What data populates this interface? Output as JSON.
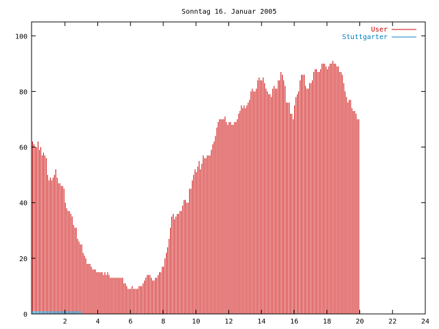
{
  "chart_data": {
    "type": "bar",
    "title": "Sonntag 16. Januar 2005",
    "xlabel": "",
    "ylabel": "",
    "xlim": [
      0,
      24
    ],
    "ylim": [
      0,
      105
    ],
    "x_ticks": [
      "2",
      "4",
      "6",
      "8",
      "10",
      "12",
      "14",
      "16",
      "18",
      "20",
      "22",
      "24"
    ],
    "y_ticks": [
      "0",
      "20",
      "40",
      "60",
      "80",
      "100"
    ],
    "grid": false,
    "legend_position": "top-right",
    "interval_minutes": 5,
    "series": [
      {
        "name": "User",
        "color": "#cc0000",
        "values": [
          62,
          61,
          60,
          60,
          62,
          59,
          60,
          57,
          58,
          57,
          56,
          50,
          48,
          49,
          48,
          49,
          50,
          52,
          49,
          47,
          47,
          46,
          46,
          45,
          40,
          38,
          37,
          37,
          36,
          35,
          32,
          31,
          31,
          27,
          26,
          25,
          25,
          22,
          21,
          20,
          18,
          18,
          18,
          17,
          16,
          16,
          16,
          15,
          15,
          15,
          15,
          15,
          14,
          15,
          14,
          15,
          14,
          13,
          13,
          13,
          13,
          13,
          13,
          13,
          13,
          13,
          13,
          11,
          11,
          10,
          9,
          9,
          9,
          10,
          9,
          9,
          9,
          9,
          10,
          10,
          10,
          11,
          12,
          13,
          14,
          14,
          14,
          13,
          12,
          12,
          13,
          13,
          14,
          15,
          15,
          17,
          17,
          20,
          22,
          24,
          27,
          31,
          35,
          36,
          34,
          35,
          36,
          36,
          37,
          37,
          39,
          41,
          41,
          40,
          40,
          45,
          45,
          48,
          50,
          52,
          51,
          53,
          55,
          52,
          54,
          57,
          56,
          56,
          57,
          57,
          57,
          59,
          61,
          62,
          64,
          67,
          69,
          70,
          70,
          70,
          70,
          71,
          69,
          68,
          69,
          69,
          68,
          68,
          69,
          69,
          70,
          72,
          73,
          75,
          74,
          75,
          74,
          75,
          76,
          77,
          80,
          81,
          80,
          80,
          81,
          84,
          85,
          84,
          84,
          85,
          83,
          81,
          80,
          79,
          79,
          78,
          81,
          82,
          81,
          81,
          84,
          84,
          87,
          86,
          84,
          82,
          76,
          76,
          76,
          72,
          72,
          70,
          75,
          78,
          79,
          80,
          84,
          86,
          86,
          86,
          82,
          81,
          81,
          83,
          83,
          84,
          87,
          88,
          88,
          87,
          87,
          88,
          90,
          90,
          90,
          89,
          88,
          89,
          90,
          90,
          91,
          90,
          90,
          89,
          89,
          87,
          87,
          86,
          83,
          80,
          78,
          76,
          77,
          77,
          74,
          73,
          73,
          72,
          70,
          70
        ]
      },
      {
        "name": "Stuttgarter",
        "color": "#0080c0",
        "values": [
          1,
          1,
          1,
          1,
          1,
          1,
          1,
          1,
          1,
          1,
          1,
          1,
          1,
          1,
          1,
          1,
          1,
          1,
          1,
          1,
          1,
          1,
          1,
          1,
          1,
          1,
          1,
          1,
          1,
          1,
          1,
          1,
          1,
          1,
          1,
          1,
          0,
          0,
          0,
          0,
          0,
          0,
          0,
          0,
          0,
          0,
          0,
          0,
          0,
          0,
          0,
          0,
          0,
          0,
          0,
          0,
          0,
          0,
          0,
          0,
          0,
          0,
          0,
          0,
          0,
          0,
          0,
          0,
          0,
          0,
          0,
          0,
          0,
          0,
          0,
          0,
          0,
          0,
          0,
          0,
          0,
          0,
          0,
          0,
          0,
          0,
          0,
          0,
          0,
          0,
          0,
          0,
          0,
          0,
          0,
          0,
          0,
          0,
          0,
          0,
          0,
          0,
          0,
          0,
          0,
          0,
          0,
          0,
          0,
          0,
          0,
          0,
          0,
          0,
          0,
          0,
          0,
          0,
          0,
          0,
          0,
          0,
          0,
          0,
          0,
          0,
          0,
          0,
          0,
          0,
          0,
          0,
          0,
          0,
          0,
          0,
          0,
          0,
          0,
          0,
          0,
          0,
          0,
          0,
          0,
          0,
          0,
          0,
          0,
          0,
          0,
          0,
          0,
          0,
          0,
          0,
          0,
          0,
          0,
          0,
          0,
          0,
          0,
          0,
          0,
          0,
          0,
          0,
          0,
          0,
          0,
          0,
          0,
          0,
          0,
          0,
          0,
          0,
          0,
          0,
          0,
          0,
          0,
          0,
          0,
          0,
          0,
          0,
          0,
          0,
          0,
          0,
          0,
          0,
          0,
          0,
          0,
          0,
          0,
          0,
          0,
          0,
          0,
          0,
          0,
          0,
          0,
          0,
          0,
          0,
          0,
          0,
          0,
          0,
          0,
          0,
          0,
          0,
          0,
          0,
          0,
          0,
          0,
          0,
          0,
          0,
          0,
          0,
          0,
          0,
          0,
          0,
          0,
          0,
          0,
          0,
          0,
          0,
          0,
          0
        ]
      }
    ]
  }
}
